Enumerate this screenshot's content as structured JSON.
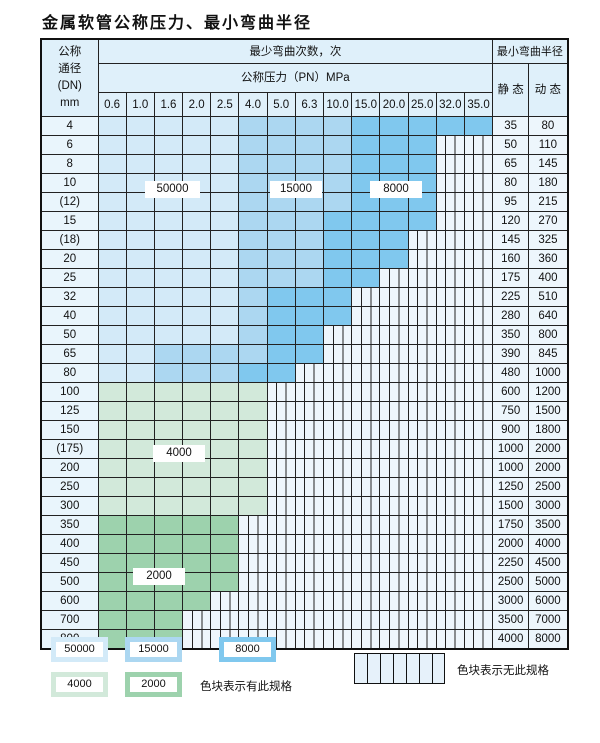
{
  "title": "金属软管公称压力、最小弯曲半径",
  "header": {
    "dn_label_lines": [
      "公称",
      "通径",
      "(DN)",
      "mm"
    ],
    "cycles_label": "最少弯曲次数，次",
    "pressure_label": "公称压力（PN）MPa",
    "radius_label": "最小弯曲半径",
    "static_label": "静 态",
    "dynamic_label": "动 态",
    "pressures": [
      "0.6",
      "1.0",
      "1.6",
      "2.0",
      "2.5",
      "4.0",
      "5.0",
      "6.3",
      "10.0",
      "15.0",
      "20.0",
      "25.0",
      "32.0",
      "35.0"
    ]
  },
  "tier_colors": {
    "t1": "#d3eaf8",
    "t2": "#acd7f1",
    "t3": "#80c8ee",
    "g1": "#d2e9da",
    "g2": "#9dd2ad"
  },
  "tier_legend": {
    "t1": "50000",
    "t2": "15000",
    "t3": "8000",
    "g1": "4000",
    "g2": "2000"
  },
  "rows": [
    {
      "dn": "4",
      "static": "35",
      "dynamic": "80",
      "cells": "11111222233333"
    },
    {
      "dn": "6",
      "static": "50",
      "dynamic": "110",
      "cells": "111112222333hh"
    },
    {
      "dn": "8",
      "static": "65",
      "dynamic": "145",
      "cells": "111112222333hh"
    },
    {
      "dn": "10",
      "static": "80",
      "dynamic": "180",
      "cells": "111112222333hh"
    },
    {
      "dn": "(12)",
      "static": "95",
      "dynamic": "215",
      "cells": "111112222333hh"
    },
    {
      "dn": "15",
      "static": "120",
      "dynamic": "270",
      "cells": "111112223333hh"
    },
    {
      "dn": "(18)",
      "static": "145",
      "dynamic": "325",
      "cells": "11111222333hhh"
    },
    {
      "dn": "20",
      "static": "160",
      "dynamic": "360",
      "cells": "11111222333hhh"
    },
    {
      "dn": "25",
      "static": "175",
      "dynamic": "400",
      "cells": "1111122233hhhh"
    },
    {
      "dn": "32",
      "static": "225",
      "dynamic": "510",
      "cells": "111112333hhhhh"
    },
    {
      "dn": "40",
      "static": "280",
      "dynamic": "640",
      "cells": "111112333hhhhh"
    },
    {
      "dn": "50",
      "static": "350",
      "dynamic": "800",
      "cells": "11111233hhhhhh"
    },
    {
      "dn": "65",
      "static": "390",
      "dynamic": "845",
      "cells": "11222233hhhhhh"
    },
    {
      "dn": "80",
      "static": "480",
      "dynamic": "1000",
      "cells": "1122233hhhhhhh"
    },
    {
      "dn": "100",
      "static": "600",
      "dynamic": "1200",
      "cells": "gggggghhhhhhhh"
    },
    {
      "dn": "125",
      "static": "750",
      "dynamic": "1500",
      "cells": "gggggghhhhhhhh"
    },
    {
      "dn": "150",
      "static": "900",
      "dynamic": "1800",
      "cells": "gggggghhhhhhhh"
    },
    {
      "dn": "(175)",
      "static": "1000",
      "dynamic": "2000",
      "cells": "gggggghhhhhhhh"
    },
    {
      "dn": "200",
      "static": "1000",
      "dynamic": "2000",
      "cells": "gggggghhhhhhhh"
    },
    {
      "dn": "250",
      "static": "1250",
      "dynamic": "2500",
      "cells": "gggggghhhhhhhh"
    },
    {
      "dn": "300",
      "static": "1500",
      "dynamic": "3000",
      "cells": "gggggghhhhhhhh"
    },
    {
      "dn": "350",
      "static": "1750",
      "dynamic": "3500",
      "cells": "GGGGGhhhhhhhhh"
    },
    {
      "dn": "400",
      "static": "2000",
      "dynamic": "4000",
      "cells": "GGGGGhhhhhhhhh"
    },
    {
      "dn": "450",
      "static": "2250",
      "dynamic": "4500",
      "cells": "GGGGGhhhhhhhhh"
    },
    {
      "dn": "500",
      "static": "2500",
      "dynamic": "5000",
      "cells": "GGGGGhhhhhhhhh"
    },
    {
      "dn": "600",
      "static": "3000",
      "dynamic": "6000",
      "cells": "GGGGhhhhhhhhhh"
    },
    {
      "dn": "700",
      "static": "3500",
      "dynamic": "7000",
      "cells": "GGGhhhhhhhhhhh"
    },
    {
      "dn": "800",
      "static": "4000",
      "dynamic": "8000",
      "cells": "GGGhhhhhhhhhhh"
    }
  ],
  "legend": {
    "has_spec_text": "色块表示有此规格",
    "no_spec_text": "色块表示无此规格"
  }
}
